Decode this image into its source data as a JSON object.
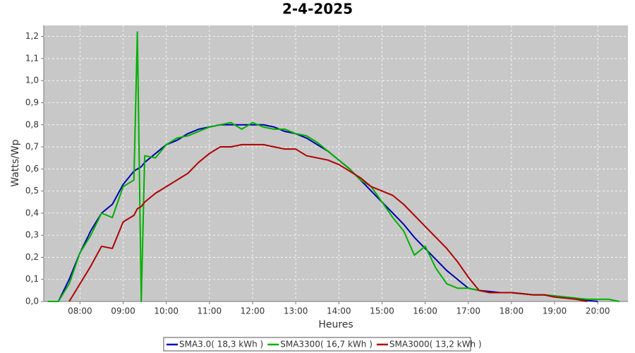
{
  "chart_data": {
    "type": "line",
    "title": "2-4-2025",
    "x_label": "Heures",
    "y_label": "Watts/Wp",
    "x": [
      7.25,
      7.5,
      7.75,
      8,
      8.25,
      8.5,
      8.75,
      9,
      9.25,
      9.33,
      9.42,
      9.5,
      9.75,
      10,
      10.25,
      10.5,
      10.75,
      11,
      11.25,
      11.5,
      11.75,
      12,
      12.25,
      12.5,
      12.75,
      13,
      13.25,
      13.5,
      13.75,
      14,
      14.25,
      14.5,
      14.75,
      15,
      15.25,
      15.5,
      15.75,
      16,
      16.25,
      16.5,
      16.75,
      17,
      17.25,
      17.5,
      17.75,
      18,
      18.25,
      18.5,
      18.75,
      19,
      19.25,
      19.5,
      19.75,
      20,
      20.25,
      20.5
    ],
    "series": [
      {
        "name": "SMA3.0( 18,3 kWh )",
        "color": "#0000b0",
        "values": [
          null,
          0,
          0.1,
          0.22,
          0.32,
          0.4,
          0.44,
          0.53,
          0.59,
          0.6,
          0.61,
          0.63,
          0.67,
          0.71,
          0.73,
          0.76,
          0.78,
          0.79,
          0.8,
          0.8,
          0.8,
          0.8,
          0.8,
          0.79,
          0.77,
          0.76,
          0.74,
          0.71,
          0.68,
          0.64,
          0.6,
          0.55,
          0.5,
          0.45,
          0.4,
          0.35,
          0.29,
          0.24,
          0.19,
          0.14,
          0.1,
          0.06,
          0.05,
          0.045,
          0.04,
          0.04,
          0.035,
          0.03,
          0.03,
          0.025,
          0.02,
          0.015,
          0.005,
          0,
          null,
          null
        ]
      },
      {
        "name": "SMA3300( 16,7 kWh )",
        "color": "#00b000",
        "values": [
          0,
          0,
          0.08,
          0.22,
          0.3,
          0.4,
          0.38,
          0.52,
          0.55,
          1.22,
          0,
          0.66,
          0.65,
          0.71,
          0.74,
          0.75,
          0.77,
          0.79,
          0.8,
          0.81,
          0.78,
          0.81,
          0.79,
          0.78,
          0.78,
          0.76,
          0.75,
          0.72,
          0.68,
          0.64,
          0.6,
          0.55,
          0.52,
          0.45,
          0.38,
          0.32,
          0.21,
          0.25,
          0.15,
          0.08,
          0.06,
          0.06,
          0.05,
          0.04,
          0.04,
          0.04,
          0.035,
          0.03,
          0.03,
          0.025,
          0.02,
          0.015,
          0.01,
          0.01,
          0.01,
          0
        ]
      },
      {
        "name": "SMA3000( 13,2 kWh )",
        "color": "#b00000",
        "values": [
          null,
          null,
          0,
          0.08,
          0.16,
          0.25,
          0.24,
          0.36,
          0.39,
          0.42,
          0.43,
          0.45,
          0.49,
          0.52,
          0.55,
          0.58,
          0.63,
          0.67,
          0.7,
          0.7,
          0.71,
          0.71,
          0.71,
          0.7,
          0.69,
          0.69,
          0.66,
          0.65,
          0.64,
          0.62,
          0.59,
          0.56,
          0.52,
          0.5,
          0.48,
          0.44,
          0.39,
          0.34,
          0.29,
          0.24,
          0.18,
          0.11,
          0.05,
          0.04,
          0.04,
          0.04,
          0.035,
          0.03,
          0.03,
          0.02,
          0.015,
          0.01,
          0,
          null,
          null,
          null
        ]
      }
    ],
    "xlim": [
      7.16,
      20.7
    ],
    "ylim": [
      0,
      1.25
    ],
    "xticks": [
      {
        "value": 8,
        "label": "08:00"
      },
      {
        "value": 9,
        "label": "09:00"
      },
      {
        "value": 10,
        "label": "10:00"
      },
      {
        "value": 11,
        "label": "11:00"
      },
      {
        "value": 12,
        "label": "12:00"
      },
      {
        "value": 13,
        "label": "13:00"
      },
      {
        "value": 14,
        "label": "14:00"
      },
      {
        "value": 15,
        "label": "15:00"
      },
      {
        "value": 16,
        "label": "16:00"
      },
      {
        "value": 17,
        "label": "17:00"
      },
      {
        "value": 18,
        "label": "18:00"
      },
      {
        "value": 19,
        "label": "19:00"
      },
      {
        "value": 20,
        "label": "20:00"
      }
    ],
    "yticks": [
      {
        "value": 0,
        "label": "0,0"
      },
      {
        "value": 0.1,
        "label": "0,1"
      },
      {
        "value": 0.2,
        "label": "0,2"
      },
      {
        "value": 0.3,
        "label": "0,3"
      },
      {
        "value": 0.4,
        "label": "0,4"
      },
      {
        "value": 0.5,
        "label": "0,5"
      },
      {
        "value": 0.6,
        "label": "0,6"
      },
      {
        "value": 0.7,
        "label": "0,7"
      },
      {
        "value": 0.8,
        "label": "0,8"
      },
      {
        "value": 0.9,
        "label": "0,9"
      },
      {
        "value": 1,
        "label": "1,0"
      },
      {
        "value": 1.1,
        "label": "1,1"
      },
      {
        "value": 1.2,
        "label": "1,2"
      }
    ],
    "grid": true,
    "legend": "bottom"
  }
}
